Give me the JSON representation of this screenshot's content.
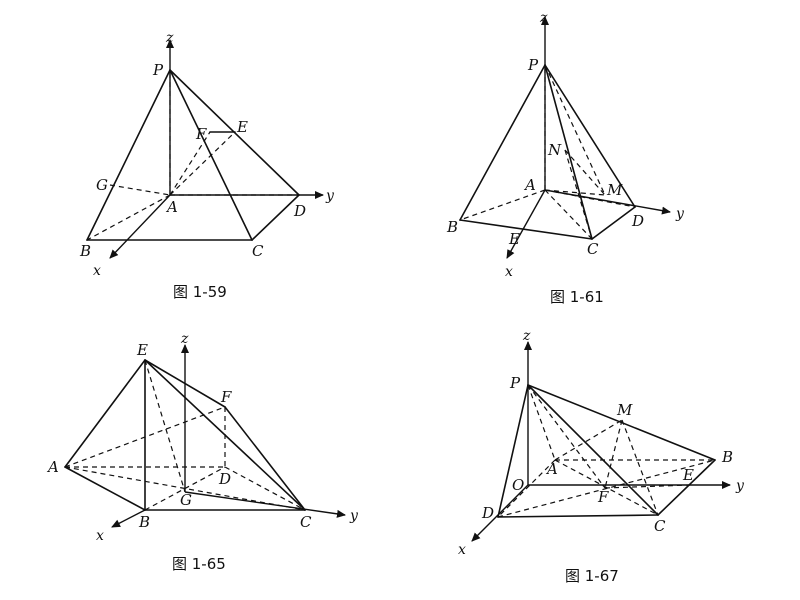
{
  "figures": [
    {
      "caption": "图 1-59",
      "points": [
        "P",
        "F",
        "E",
        "G",
        "A",
        "D",
        "B",
        "C"
      ],
      "axes": [
        "z",
        "y",
        "x"
      ]
    },
    {
      "caption": "图 1-61",
      "points": [
        "P",
        "N",
        "A",
        "M",
        "B",
        "D",
        "E",
        "C"
      ],
      "axes": [
        "z",
        "y",
        "x"
      ]
    },
    {
      "caption": "图 1-65",
      "points": [
        "E",
        "F",
        "A",
        "D",
        "G",
        "B",
        "C"
      ],
      "axes": [
        "z",
        "y",
        "x"
      ]
    },
    {
      "caption": "图 1-67",
      "points": [
        "P",
        "M",
        "A",
        "B",
        "O",
        "F",
        "E",
        "D",
        "C"
      ],
      "axes": [
        "z",
        "y",
        "x"
      ]
    }
  ]
}
